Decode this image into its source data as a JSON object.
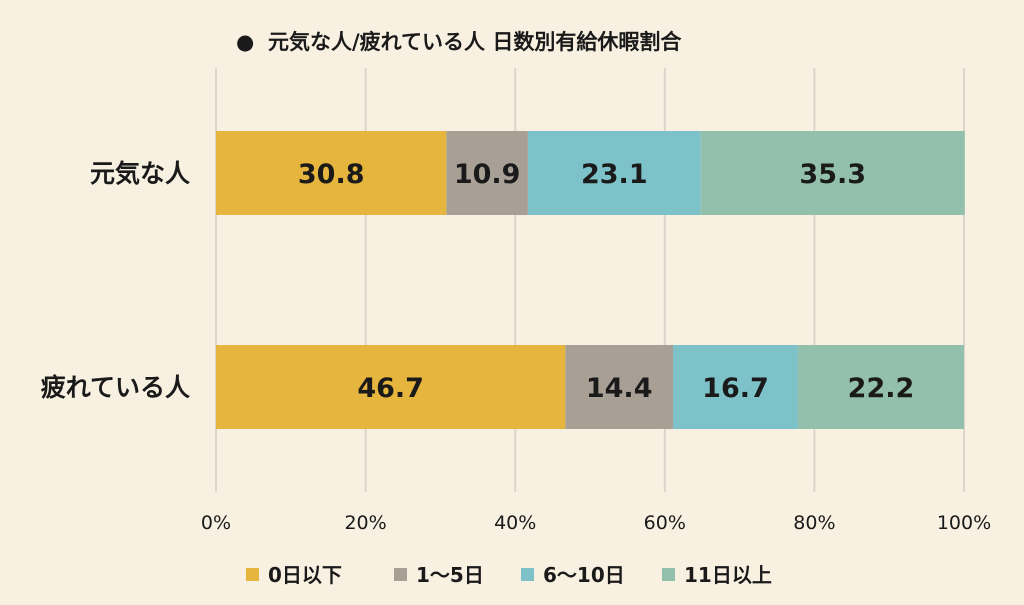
{
  "chart_data": {
    "type": "bar",
    "orientation": "horizontal",
    "stacked": true,
    "title": "元気な人/疲れている人 日数別有給休暇割合",
    "title_marker": "●",
    "categories": [
      "元気な人",
      "疲れている人"
    ],
    "series": [
      {
        "name": "0日以下",
        "color": "#e5b53d",
        "values": [
          30.8,
          46.7
        ]
      },
      {
        "name": "1〜5日",
        "color": "#a89f95",
        "values": [
          10.9,
          14.4
        ]
      },
      {
        "name": "6〜10日",
        "color": "#7dc2c8",
        "values": [
          23.1,
          16.7
        ]
      },
      {
        "name": "11日以上",
        "color": "#93c0ac",
        "values": [
          35.3,
          22.2
        ]
      }
    ],
    "xlim": [
      0,
      100
    ],
    "x_ticks": [
      "0%",
      "20%",
      "40%",
      "60%",
      "80%",
      "100%"
    ],
    "grid": true,
    "legend_position": "bottom"
  }
}
